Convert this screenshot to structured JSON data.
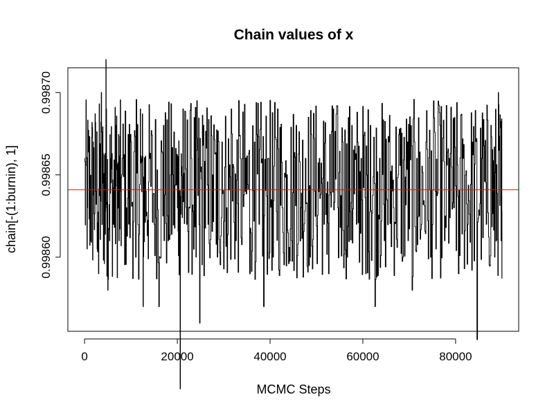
{
  "chart_data": {
    "type": "line",
    "title": "Chain values of x",
    "xlabel": "MCMC Steps",
    "ylabel": "chain[-(1:burnin), 1]",
    "xlim": [
      -3600,
      93600
    ],
    "ylim": [
      0.998555,
      0.998715
    ],
    "x_ticks": [
      0,
      20000,
      40000,
      60000,
      80000
    ],
    "x_tick_labels": [
      "0",
      "20000",
      "40000",
      "60000",
      "80000"
    ],
    "y_ticks": [
      0.9986,
      0.99865,
      0.9987
    ],
    "y_tick_labels": [
      "0.99860",
      "0.99865",
      "0.99870"
    ],
    "grid": false,
    "series": [
      {
        "style": "step",
        "color": "#000000",
        "n_steps": 90000,
        "points": [
          [
            0,
            0.99866
          ],
          [
            600,
            0.99863
          ],
          [
            1200,
            0.99861
          ],
          [
            1800,
            0.99867
          ],
          [
            2400,
            0.99864
          ],
          [
            3000,
            0.99859
          ],
          [
            3600,
            0.9987
          ],
          [
            4200,
            0.99863
          ],
          [
            4600,
            0.99872
          ],
          [
            5000,
            0.99858
          ],
          [
            5600,
            0.99866
          ],
          [
            6200,
            0.99862
          ],
          [
            6800,
            0.99868
          ],
          [
            7400,
            0.99861
          ],
          [
            8000,
            0.99865
          ],
          [
            9000,
            0.99863
          ],
          [
            10000,
            0.99867
          ],
          [
            11000,
            0.9986
          ],
          [
            12000,
            0.99869
          ],
          [
            12600,
            0.99857
          ],
          [
            13200,
            0.99864
          ],
          [
            14000,
            0.99866
          ],
          [
            15000,
            0.99862
          ],
          [
            16000,
            0.99857
          ],
          [
            17000,
            0.99868
          ],
          [
            18000,
            0.99861
          ],
          [
            19000,
            0.99865
          ],
          [
            20000,
            0.99863
          ],
          [
            20600,
            0.99852
          ],
          [
            21200,
            0.99869
          ],
          [
            22000,
            0.99862
          ],
          [
            23000,
            0.99866
          ],
          [
            24000,
            0.9986
          ],
          [
            24800,
            0.99856
          ],
          [
            25600,
            0.99868
          ],
          [
            26600,
            0.99862
          ],
          [
            27600,
            0.99865
          ],
          [
            28600,
            0.9986
          ],
          [
            29600,
            0.99867
          ],
          [
            30600,
            0.99863
          ],
          [
            31600,
            0.99869
          ],
          [
            32600,
            0.99861
          ],
          [
            33600,
            0.99866
          ],
          [
            34600,
            0.99864
          ],
          [
            35600,
            0.99859
          ],
          [
            36600,
            0.99867
          ],
          [
            37600,
            0.99862
          ],
          [
            38600,
            0.99857
          ],
          [
            39600,
            0.99866
          ],
          [
            40600,
            0.9986
          ],
          [
            41600,
            0.99869
          ],
          [
            42600,
            0.99863
          ],
          [
            43600,
            0.99865
          ],
          [
            44600,
            0.99861
          ],
          [
            45600,
            0.99868
          ],
          [
            46600,
            0.99863
          ],
          [
            47600,
            0.99866
          ],
          [
            48600,
            0.9986
          ],
          [
            49600,
            0.99864
          ],
          [
            50600,
            0.99866
          ],
          [
            51600,
            0.99862
          ],
          [
            52600,
            0.99859
          ],
          [
            53600,
            0.99869
          ],
          [
            54600,
            0.99863
          ],
          [
            55600,
            0.99867
          ],
          [
            56600,
            0.9986
          ],
          [
            57600,
            0.99868
          ],
          [
            58600,
            0.99862
          ],
          [
            59600,
            0.99866
          ],
          [
            60600,
            0.99859
          ],
          [
            61600,
            0.99868
          ],
          [
            62600,
            0.99857
          ],
          [
            63600,
            0.99866
          ],
          [
            64600,
            0.99861
          ],
          [
            65600,
            0.99867
          ],
          [
            66600,
            0.99863
          ],
          [
            67600,
            0.99865
          ],
          [
            68600,
            0.9986
          ],
          [
            69600,
            0.99867
          ],
          [
            70600,
            0.99858
          ],
          [
            71600,
            0.99866
          ],
          [
            72600,
            0.99862
          ],
          [
            73600,
            0.99867
          ],
          [
            74600,
            0.9986
          ],
          [
            75600,
            0.99864
          ],
          [
            76600,
            0.99868
          ],
          [
            77600,
            0.99861
          ],
          [
            78600,
            0.99866
          ],
          [
            79600,
            0.99863
          ],
          [
            80600,
            0.99859
          ],
          [
            81600,
            0.99866
          ],
          [
            82600,
            0.99862
          ],
          [
            83600,
            0.99867
          ],
          [
            84600,
            0.99855
          ],
          [
            85600,
            0.99866
          ],
          [
            86600,
            0.99862
          ],
          [
            87600,
            0.99868
          ],
          [
            88400,
            0.9986
          ],
          [
            89200,
            0.9987
          ],
          [
            89800,
            0.99861
          ],
          [
            90000,
            0.998628
          ]
        ]
      },
      {
        "style": "hline",
        "color": "#ff0000",
        "y": 0.998641
      }
    ]
  }
}
